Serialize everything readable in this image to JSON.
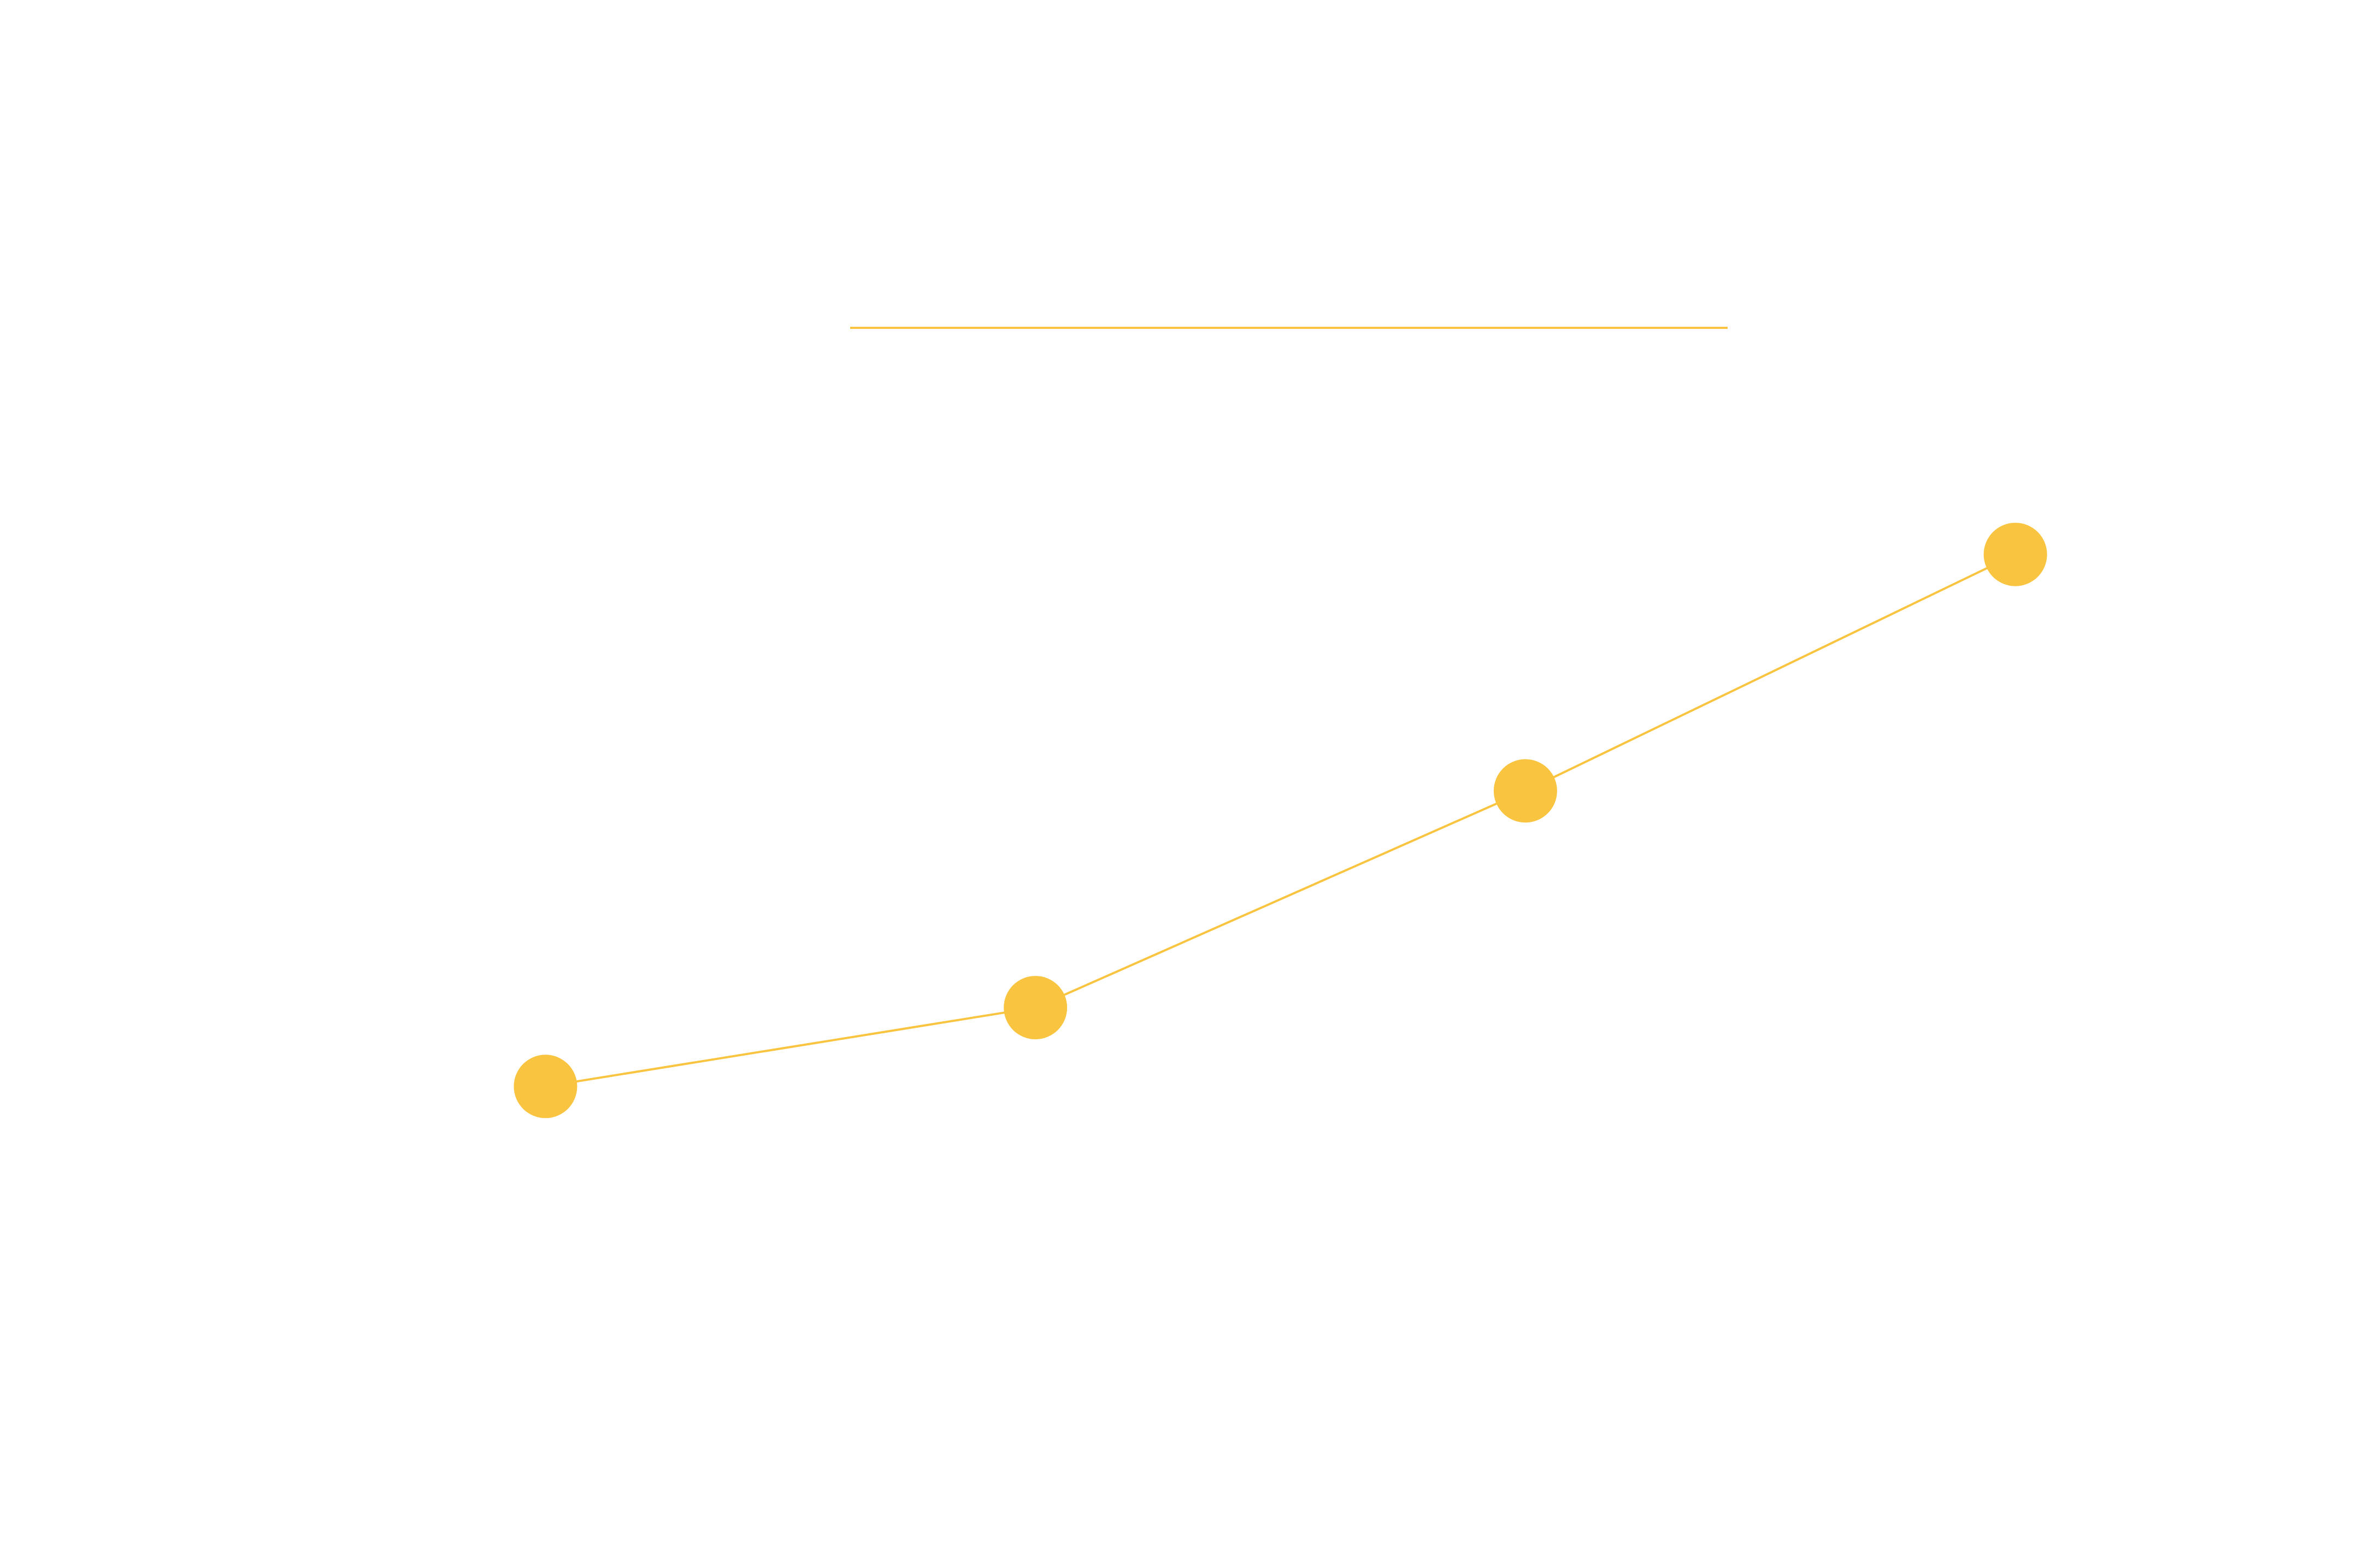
{
  "chart_data": {
    "type": "line",
    "categories": [
      null,
      null,
      null,
      null
    ],
    "values": [
      23,
      31,
      53,
      77
    ],
    "color": "#f9c440",
    "ylim": [
      0,
      100
    ]
  }
}
